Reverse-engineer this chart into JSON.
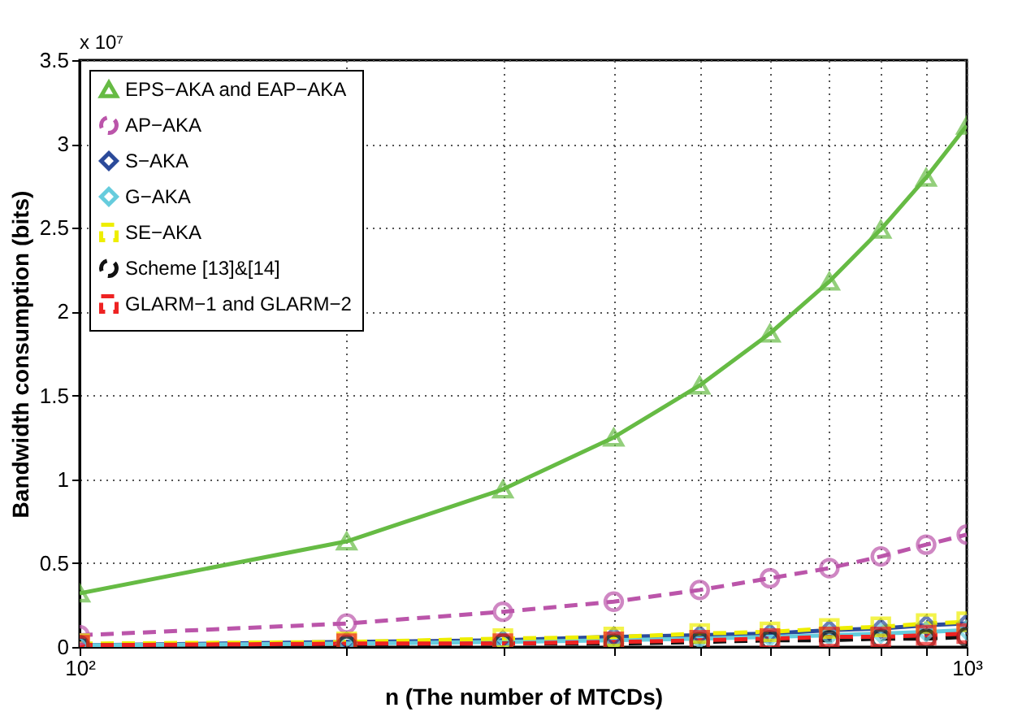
{
  "chart_data": {
    "type": "line",
    "xlabel": "n (The number of MTCDs)",
    "ylabel": "Bandwidth consumption (bits)",
    "annotations": [
      "x 10⁷"
    ],
    "x": [
      100,
      200,
      300,
      400,
      500,
      600,
      700,
      800,
      900,
      1000
    ],
    "log": "x",
    "xlim": [
      100,
      1000
    ],
    "ylim": [
      0,
      3.5
    ],
    "xticks": [
      {
        "value": 100,
        "label": "10²"
      },
      {
        "value": 200,
        "label": null
      },
      {
        "value": 300,
        "label": null
      },
      {
        "value": 400,
        "label": null
      },
      {
        "value": 500,
        "label": null
      },
      {
        "value": 600,
        "label": null
      },
      {
        "value": 700,
        "label": null
      },
      {
        "value": 800,
        "label": null
      },
      {
        "value": 900,
        "label": null
      },
      {
        "value": 1000,
        "label": "10³"
      }
    ],
    "yticks": [
      0,
      0.5,
      1,
      1.5,
      2,
      2.5,
      3,
      3.5
    ],
    "grid": true,
    "legend": "top left",
    "series": [
      {
        "name": "EPS−AKA and EAP−AKA",
        "color": "#66bb44",
        "marker": "triangle",
        "line_style": "solid",
        "values": [
          0.32,
          0.63,
          0.94,
          1.25,
          1.56,
          1.87,
          2.18,
          2.49,
          2.8,
          3.11
        ]
      },
      {
        "name": "AP−AKA",
        "color": "#bb55aa",
        "marker": "circle",
        "line_style": "dashed",
        "values": [
          0.07,
          0.14,
          0.21,
          0.27,
          0.34,
          0.41,
          0.47,
          0.54,
          0.61,
          0.67
        ]
      },
      {
        "name": "S−AKA",
        "color": "#2b4a9a",
        "marker": "diamond",
        "line_style": "solid",
        "values": [
          0.01,
          0.03,
          0.04,
          0.06,
          0.07,
          0.08,
          0.1,
          0.11,
          0.13,
          0.14
        ]
      },
      {
        "name": "G−AKA",
        "color": "#66ccdd",
        "marker": "diamond",
        "line_style": "solid",
        "values": [
          0.01,
          0.02,
          0.03,
          0.04,
          0.05,
          0.06,
          0.07,
          0.08,
          0.09,
          0.1
        ]
      },
      {
        "name": "SE−AKA",
        "color": "#eeee00",
        "marker": "square",
        "line_style": "dashed",
        "values": [
          0.02,
          0.03,
          0.05,
          0.06,
          0.08,
          0.09,
          0.11,
          0.12,
          0.14,
          0.15
        ]
      },
      {
        "name": "Scheme [13]&[14]",
        "color": "#111111",
        "marker": "circle",
        "line_style": "dashed",
        "values": [
          0.01,
          0.01,
          0.02,
          0.02,
          0.03,
          0.04,
          0.04,
          0.05,
          0.05,
          0.06
        ]
      },
      {
        "name": "GLARM−1 and GLARM−2",
        "color": "#ee2222",
        "marker": "square",
        "line_style": "dashed",
        "values": [
          0.01,
          0.02,
          0.02,
          0.03,
          0.04,
          0.05,
          0.06,
          0.06,
          0.07,
          0.08
        ]
      }
    ]
  }
}
